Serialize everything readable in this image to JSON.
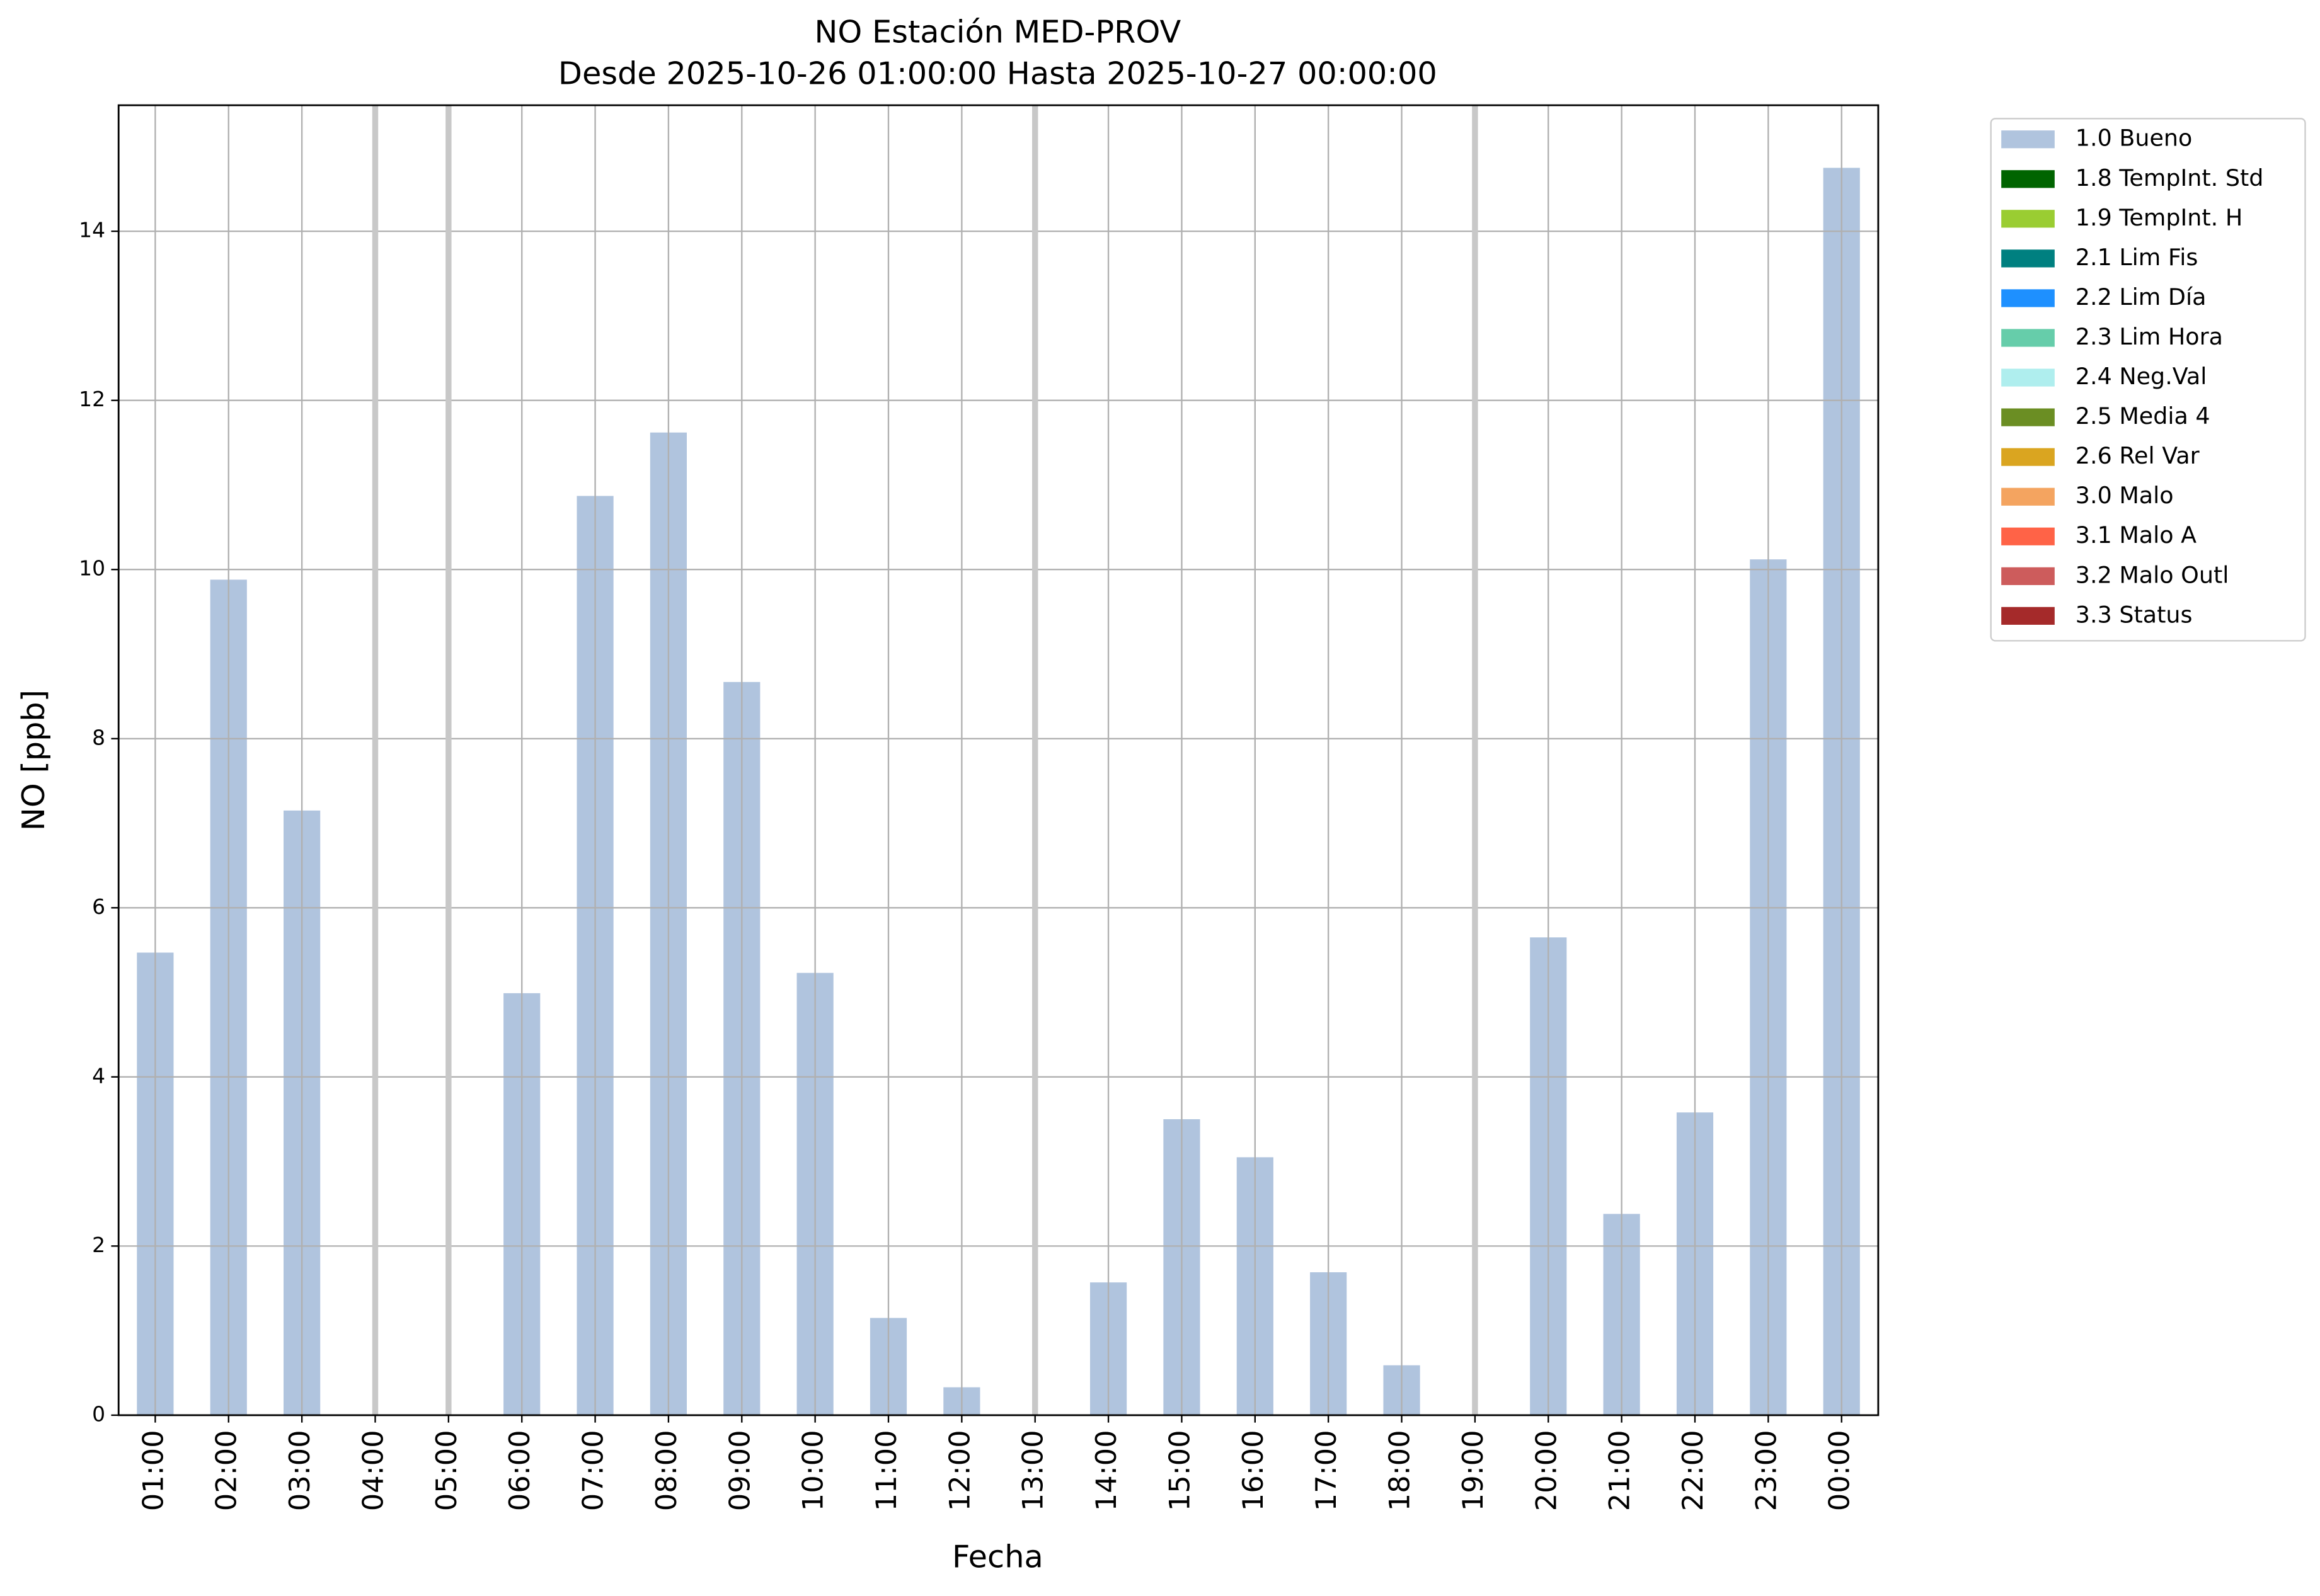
{
  "chart_data": {
    "type": "bar",
    "stacked": true,
    "title": "NO Estación MED-PROV",
    "subtitle": "Desde 2025-10-26 01:00:00 Hasta 2025-10-27 00:00:00",
    "x_label": "Fecha",
    "y_label": "NO [ppb]",
    "categories": [
      "01:00",
      "02:00",
      "03:00",
      "04:00",
      "05:00",
      "06:00",
      "07:00",
      "08:00",
      "09:00",
      "10:00",
      "11:00",
      "12:00",
      "13:00",
      "14:00",
      "15:00",
      "16:00",
      "17:00",
      "18:00",
      "19:00",
      "20:00",
      "21:00",
      "22:00",
      "23:00",
      "00:00"
    ],
    "series": [
      {
        "name": "1.0 Bueno",
        "color": "#b0c4de",
        "values": [
          5.47,
          9.88,
          7.15,
          null,
          null,
          4.99,
          10.87,
          11.62,
          8.67,
          5.23,
          1.15,
          0.33,
          null,
          1.57,
          3.5,
          3.05,
          1.69,
          0.59,
          null,
          5.65,
          2.38,
          3.58,
          10.12,
          14.75
        ]
      },
      {
        "name": "1.8 TempInt. Std",
        "color": "#006400",
        "values": [
          null,
          null,
          null,
          null,
          null,
          null,
          null,
          null,
          null,
          null,
          null,
          null,
          null,
          null,
          null,
          null,
          null,
          null,
          null,
          null,
          null,
          null,
          null,
          null
        ]
      },
      {
        "name": "1.9 TempInt. H",
        "color": "#9acd32",
        "values": [
          null,
          null,
          null,
          null,
          null,
          null,
          null,
          null,
          null,
          null,
          null,
          null,
          null,
          null,
          null,
          null,
          null,
          null,
          null,
          null,
          null,
          null,
          null,
          null
        ]
      },
      {
        "name": "2.1 Lim Fis",
        "color": "#008080",
        "values": [
          null,
          null,
          null,
          null,
          null,
          null,
          null,
          null,
          null,
          null,
          null,
          null,
          null,
          null,
          null,
          null,
          null,
          null,
          null,
          null,
          null,
          null,
          null,
          null
        ]
      },
      {
        "name": "2.2 Lim Día",
        "color": "#1e90ff",
        "values": [
          null,
          null,
          null,
          null,
          null,
          null,
          null,
          null,
          null,
          null,
          null,
          null,
          null,
          null,
          null,
          null,
          null,
          null,
          null,
          null,
          null,
          null,
          null,
          null
        ]
      },
      {
        "name": "2.3 Lim Hora",
        "color": "#66cdaa",
        "values": [
          null,
          null,
          null,
          null,
          null,
          null,
          null,
          null,
          null,
          null,
          null,
          null,
          null,
          null,
          null,
          null,
          null,
          null,
          null,
          null,
          null,
          null,
          null,
          null
        ]
      },
      {
        "name": "2.4 Neg.Val",
        "color": "#afeeee",
        "values": [
          null,
          null,
          null,
          null,
          null,
          null,
          null,
          null,
          null,
          null,
          null,
          null,
          null,
          null,
          null,
          null,
          null,
          null,
          null,
          null,
          null,
          null,
          null,
          null
        ]
      },
      {
        "name": "2.5 Media 4",
        "color": "#6b8e23",
        "values": [
          null,
          null,
          null,
          null,
          null,
          null,
          null,
          null,
          null,
          null,
          null,
          null,
          null,
          null,
          null,
          null,
          null,
          null,
          null,
          null,
          null,
          null,
          null,
          null
        ]
      },
      {
        "name": "2.6 Rel Var",
        "color": "#daa520",
        "values": [
          null,
          null,
          null,
          null,
          null,
          null,
          null,
          null,
          null,
          null,
          null,
          null,
          null,
          null,
          null,
          null,
          null,
          null,
          null,
          null,
          null,
          null,
          null,
          null
        ]
      },
      {
        "name": "3.0 Malo",
        "color": "#f4a460",
        "values": [
          null,
          null,
          null,
          null,
          null,
          null,
          null,
          null,
          null,
          null,
          null,
          null,
          null,
          null,
          null,
          null,
          null,
          null,
          null,
          null,
          null,
          null,
          null,
          null
        ]
      },
      {
        "name": "3.1 Malo A",
        "color": "#ff6347",
        "values": [
          null,
          null,
          null,
          null,
          null,
          null,
          null,
          null,
          null,
          null,
          null,
          null,
          null,
          null,
          null,
          null,
          null,
          null,
          null,
          null,
          null,
          null,
          null,
          null
        ]
      },
      {
        "name": "3.2 Malo Outl",
        "color": "#cd5c5c",
        "values": [
          null,
          null,
          null,
          null,
          null,
          null,
          null,
          null,
          null,
          null,
          null,
          null,
          null,
          null,
          null,
          null,
          null,
          null,
          null,
          null,
          null,
          null,
          null,
          null
        ]
      },
      {
        "name": "3.3 Status",
        "color": "#a52a2a",
        "values": [
          null,
          null,
          null,
          null,
          null,
          null,
          null,
          null,
          null,
          null,
          null,
          null,
          null,
          null,
          null,
          null,
          null,
          null,
          null,
          null,
          null,
          null,
          null,
          null
        ]
      }
    ],
    "ylim": [
      0,
      15.49
    ],
    "yticks": [
      0,
      2,
      4,
      6,
      8,
      10,
      12,
      14
    ],
    "grid": true,
    "legend": "outside right"
  }
}
